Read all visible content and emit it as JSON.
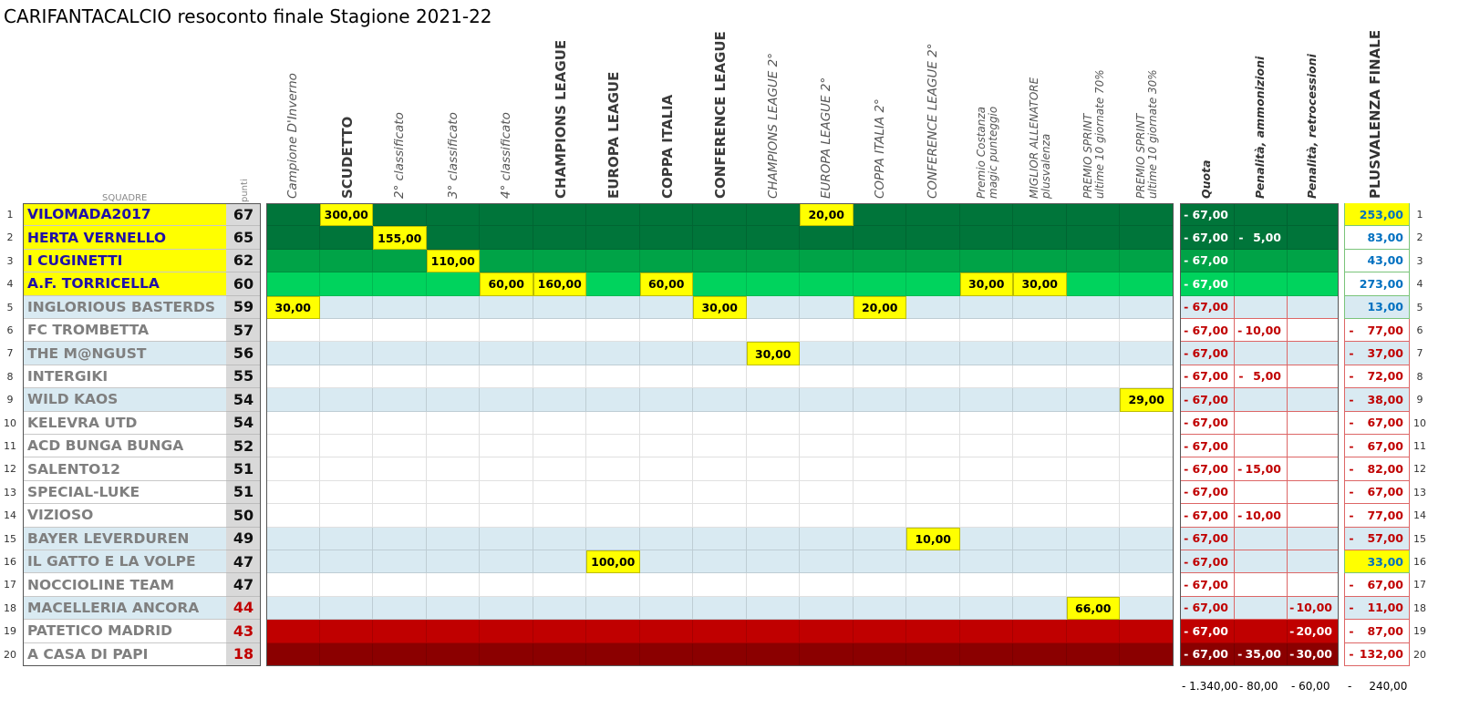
{
  "title": "CARIFANTACALCIO resoconto finale Stagione 2021-22",
  "squadre_label": "SQUADRE",
  "punti_label": "punti",
  "prize_columns": [
    {
      "lines": [
        "Campione D'Inverno"
      ],
      "style": "ital"
    },
    {
      "lines": [
        "SCUDETTO"
      ],
      "style": "bold"
    },
    {
      "lines": [
        "2° classificato"
      ],
      "style": "ital"
    },
    {
      "lines": [
        "3° classificato"
      ],
      "style": "ital"
    },
    {
      "lines": [
        "4° classificato"
      ],
      "style": "ital"
    },
    {
      "lines": [
        "CHAMPIONS LEAGUE"
      ],
      "style": "bold"
    },
    {
      "lines": [
        "EUROPA LEAGUE"
      ],
      "style": "bold"
    },
    {
      "lines": [
        "COPPA ITALIA"
      ],
      "style": "bold"
    },
    {
      "lines": [
        "CONFERENCE LEAGUE"
      ],
      "style": "bold"
    },
    {
      "lines": [
        "CHAMPIONS LEAGUE 2°"
      ],
      "style": "ital"
    },
    {
      "lines": [
        "EUROPA LEAGUE 2°"
      ],
      "style": "ital"
    },
    {
      "lines": [
        "COPPA ITALIA 2°"
      ],
      "style": "ital"
    },
    {
      "lines": [
        "CONFERENCE LEAGUE 2°"
      ],
      "style": "ital"
    },
    {
      "lines": [
        "Premio Costanza",
        "magic punteggio"
      ],
      "style": "small"
    },
    {
      "lines": [
        "MIGLIOR ALLENATORE",
        "plusvalenza"
      ],
      "style": "small"
    },
    {
      "lines": [
        "PREMIO SPRINT",
        "ultime 10 giornate 70%"
      ],
      "style": "small"
    },
    {
      "lines": [
        "PREMIO SPRINT",
        "ultime 10 giornate 30%"
      ],
      "style": "small"
    }
  ],
  "right_columns": [
    "Quota",
    "Penalità, ammonizioni",
    "Penalità, retrocessioni"
  ],
  "final_column": "PLUSVALENZA FINALE",
  "rows": [
    {
      "n": "1",
      "team": "VILOMADA2017",
      "pts": "67",
      "band": "g1",
      "prizes": {
        "1": "300,00",
        "10": "20,00"
      },
      "quota": "67,00",
      "amm": "",
      "retro": "",
      "plus": "253,00"
    },
    {
      "n": "2",
      "team": "HERTA VERNELLO",
      "pts": "65",
      "band": "g1",
      "prizes": {
        "2": "155,00"
      },
      "quota": "67,00",
      "amm": "5,00",
      "retro": "",
      "plus": "83,00"
    },
    {
      "n": "3",
      "team": "I CUGINETTI",
      "pts": "62",
      "band": "g2",
      "prizes": {
        "3": "110,00"
      },
      "quota": "67,00",
      "amm": "",
      "retro": "",
      "plus": "43,00"
    },
    {
      "n": "4",
      "team": "A.F. TORRICELLA",
      "pts": "60",
      "band": "g3",
      "prizes": {
        "4": "60,00",
        "5": "160,00",
        "7": "60,00",
        "13": "30,00",
        "14": "30,00"
      },
      "quota": "67,00",
      "amm": "",
      "retro": "",
      "plus": "273,00"
    },
    {
      "n": "5",
      "team": "INGLORIOUS BASTERDS",
      "pts": "59",
      "band": "lb",
      "prizes": {
        "0": "30,00",
        "8": "30,00",
        "11": "20,00"
      },
      "quota": "67,00",
      "amm": "",
      "retro": "",
      "plus": "13,00"
    },
    {
      "n": "6",
      "team": "FC TROMBETTA",
      "pts": "57",
      "band": "wh",
      "prizes": {},
      "quota": "67,00",
      "amm": "10,00",
      "retro": "",
      "plus": "77,00"
    },
    {
      "n": "7",
      "team": "THE M@NGUST",
      "pts": "56",
      "band": "lb",
      "prizes": {
        "9": "30,00"
      },
      "quota": "67,00",
      "amm": "",
      "retro": "",
      "plus": "37,00"
    },
    {
      "n": "8",
      "team": "INTERGIKI",
      "pts": "55",
      "band": "wh",
      "prizes": {},
      "quota": "67,00",
      "amm": "5,00",
      "retro": "",
      "plus": "72,00"
    },
    {
      "n": "9",
      "team": "WILD KAOS",
      "pts": "54",
      "band": "lb",
      "prizes": {
        "16": "29,00"
      },
      "quota": "67,00",
      "amm": "",
      "retro": "",
      "plus": "38,00"
    },
    {
      "n": "10",
      "team": "KELEVRA UTD",
      "pts": "54",
      "band": "wh",
      "prizes": {},
      "quota": "67,00",
      "amm": "",
      "retro": "",
      "plus": "67,00"
    },
    {
      "n": "11",
      "team": "ACD BUNGA BUNGA",
      "pts": "52",
      "band": "wh",
      "prizes": {},
      "quota": "67,00",
      "amm": "",
      "retro": "",
      "plus": "67,00"
    },
    {
      "n": "12",
      "team": "SALENTO12",
      "pts": "51",
      "band": "wh",
      "prizes": {},
      "quota": "67,00",
      "amm": "15,00",
      "retro": "",
      "plus": "82,00"
    },
    {
      "n": "13",
      "team": "SPECIAL-LUKE",
      "pts": "51",
      "band": "wh",
      "prizes": {},
      "quota": "67,00",
      "amm": "",
      "retro": "",
      "plus": "67,00"
    },
    {
      "n": "14",
      "team": "VIZIOSO",
      "pts": "50",
      "band": "wh",
      "prizes": {},
      "quota": "67,00",
      "amm": "10,00",
      "retro": "",
      "plus": "77,00"
    },
    {
      "n": "15",
      "team": "BAYER LEVERDUREN",
      "pts": "49",
      "band": "lb",
      "prizes": {
        "12": "10,00"
      },
      "quota": "67,00",
      "amm": "",
      "retro": "",
      "plus": "57,00"
    },
    {
      "n": "16",
      "team": "IL GATTO E LA VOLPE",
      "pts": "47",
      "band": "lb",
      "prizes": {
        "6": "100,00"
      },
      "quota": "67,00",
      "amm": "",
      "retro": "",
      "plus": "33,00"
    },
    {
      "n": "17",
      "team": "NOCCIOLINE TEAM",
      "pts": "47",
      "band": "wh",
      "prizes": {},
      "quota": "67,00",
      "amm": "",
      "retro": "",
      "plus": "67,00"
    },
    {
      "n": "18",
      "team": "MACELLERIA ANCORA",
      "pts": "44",
      "band": "lb",
      "prizes": {
        "15": "66,00"
      },
      "quota": "67,00",
      "amm": "",
      "retro": "10,00",
      "plus": "11,00"
    },
    {
      "n": "19",
      "team": "PATETICO MADRID",
      "pts": "43",
      "band": "r1",
      "prizes": {},
      "quota": "67,00",
      "amm": "",
      "retro": "20,00",
      "plus": "87,00"
    },
    {
      "n": "20",
      "team": "A CASA DI PAPI",
      "pts": "18",
      "band": "r2",
      "prizes": {},
      "quota": "67,00",
      "amm": "35,00",
      "retro": "30,00",
      "plus": "132,00"
    }
  ],
  "totals": {
    "quota": "1.340,00",
    "amm": "80,00",
    "retro": "60,00",
    "plus": "240,00"
  },
  "colors": {
    "g1": "#00753a",
    "g2": "#00a347",
    "g3": "#00d35d",
    "lb": "#d9eaf2",
    "wh": "#ffffff",
    "r1": "#c00000",
    "r2": "#8b0000",
    "yellow": "#ffff00",
    "team_top": "#1f0fa8",
    "team_grey": "#7f7f7f",
    "pts_red": "#c00000"
  }
}
